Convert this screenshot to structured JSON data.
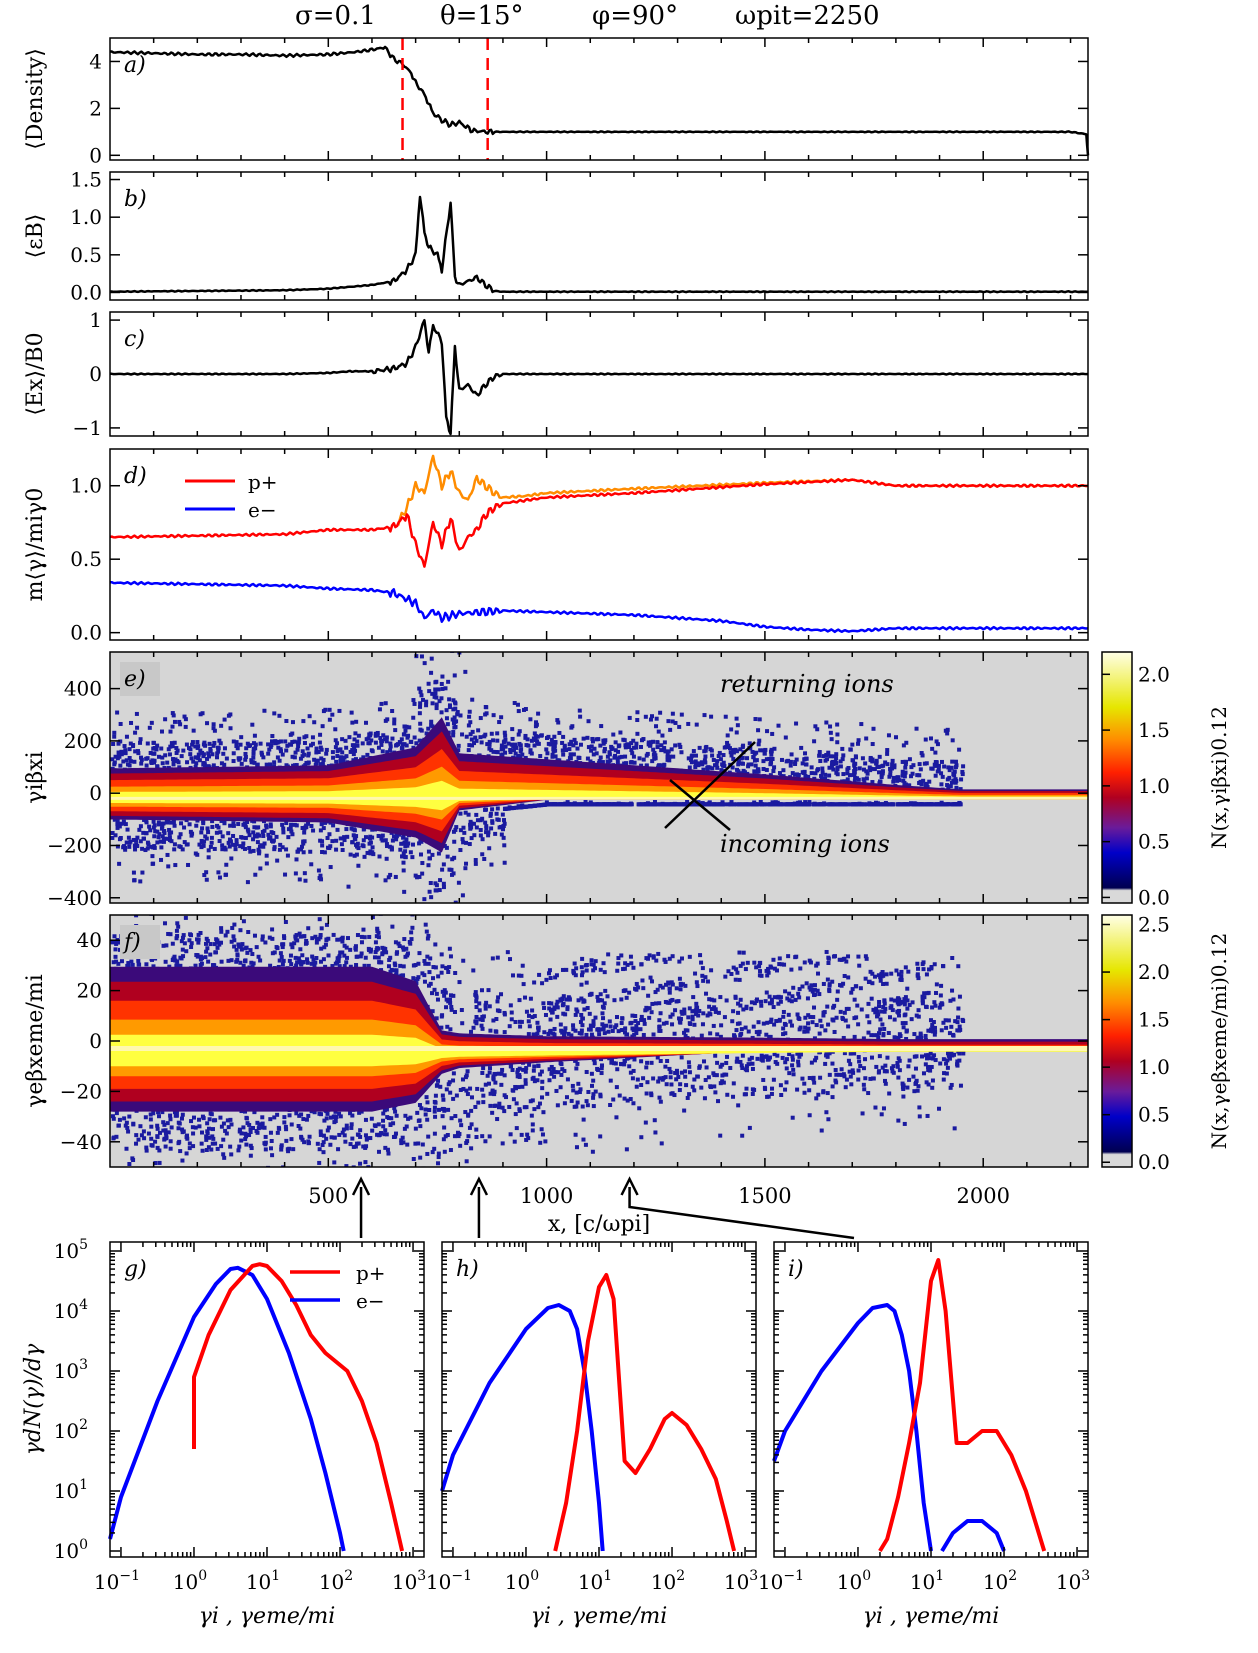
{
  "header": {
    "sigma": "σ=0.1",
    "theta": "θ=15°",
    "phi": "φ=90°",
    "time": "ωpit=2250"
  },
  "chart_data": [
    {
      "id": "a",
      "panel_label": "a)",
      "type": "line",
      "ylabel": "⟨Density⟩",
      "xlim": [
        0,
        2240
      ],
      "ylim": [
        -0.2,
        5
      ],
      "yticks": [
        0,
        2,
        4
      ],
      "markers_x": [
        670,
        865
      ],
      "series": [
        {
          "name": "density",
          "color": "#000000",
          "x": [
            0,
            100,
            200,
            300,
            400,
            500,
            560,
            600,
            630,
            650,
            670,
            690,
            700,
            720,
            730,
            740,
            760,
            780,
            800,
            830,
            865,
            900,
            1000,
            1500,
            2000,
            2200,
            2236,
            2240
          ],
          "y": [
            4.4,
            4.35,
            4.3,
            4.3,
            4.25,
            4.3,
            4.4,
            4.5,
            4.6,
            4.1,
            3.9,
            3.5,
            3.1,
            2.6,
            2.2,
            1.8,
            1.5,
            1.3,
            1.4,
            1.05,
            1.0,
            1.0,
            1.0,
            1.0,
            1.0,
            1.0,
            0.9,
            0.0
          ]
        }
      ]
    },
    {
      "id": "b",
      "panel_label": "b)",
      "type": "line",
      "ylabel": "⟨εB⟩",
      "xlim": [
        0,
        2240
      ],
      "ylim": [
        -0.1,
        1.6
      ],
      "yticks": [
        0.0,
        0.5,
        1.0,
        1.5
      ],
      "series": [
        {
          "name": "epsilon_B",
          "color": "#000000",
          "x": [
            0,
            200,
            400,
            500,
            600,
            650,
            680,
            700,
            710,
            720,
            730,
            750,
            760,
            780,
            790,
            800,
            820,
            840,
            860,
            880,
            900,
            1000,
            1500,
            2240
          ],
          "y": [
            0.01,
            0.02,
            0.03,
            0.05,
            0.1,
            0.15,
            0.3,
            0.5,
            1.3,
            0.8,
            0.6,
            0.5,
            0.3,
            1.2,
            0.2,
            0.1,
            0.15,
            0.2,
            0.1,
            0.02,
            0.01,
            0.01,
            0.01,
            0.01
          ]
        }
      ]
    },
    {
      "id": "c",
      "panel_label": "c)",
      "type": "line",
      "ylabel": "⟨Ex⟩/B0",
      "xlim": [
        0,
        2240
      ],
      "ylim": [
        -1.15,
        1.15
      ],
      "yticks": [
        -1,
        0,
        1
      ],
      "series": [
        {
          "name": "Ex_over_B0",
          "color": "#000000",
          "x": [
            0,
            200,
            400,
            500,
            550,
            600,
            650,
            680,
            700,
            720,
            730,
            740,
            760,
            770,
            780,
            790,
            800,
            820,
            840,
            860,
            880,
            900,
            1000,
            1500,
            2240
          ],
          "y": [
            0,
            0,
            0,
            0.02,
            0.05,
            0.05,
            0.1,
            0.2,
            0.5,
            1.0,
            0.4,
            0.9,
            0.6,
            -0.8,
            -1.1,
            0.5,
            -0.3,
            -0.2,
            -0.4,
            -0.2,
            -0.05,
            0,
            0,
            0,
            0
          ]
        }
      ]
    },
    {
      "id": "d",
      "panel_label": "d)",
      "type": "line",
      "ylabel": "m⟨γ⟩/miγ0",
      "xlim": [
        0,
        2240
      ],
      "ylim": [
        -0.05,
        1.25
      ],
      "yticks": [
        0.0,
        0.5,
        1.0
      ],
      "legend": [
        {
          "label": "p+",
          "color": "#ff0000"
        },
        {
          "label": "e−",
          "color": "#0000ff"
        }
      ],
      "series": [
        {
          "name": "p+ total",
          "color": "#ff8c00",
          "x": [
            660,
            680,
            700,
            720,
            740,
            760,
            780,
            800,
            820,
            840,
            860,
            880,
            900,
            950,
            1000,
            1200,
            1500,
            1700,
            1800,
            2000,
            2240
          ],
          "y": [
            0.75,
            0.85,
            1.0,
            0.95,
            1.2,
            1.0,
            1.1,
            0.95,
            0.9,
            1.05,
            1.0,
            0.95,
            0.92,
            0.93,
            0.95,
            0.98,
            1.02,
            1.04,
            1.0,
            1.0,
            1.0
          ]
        },
        {
          "name": "p+",
          "color": "#ff0000",
          "x": [
            0,
            200,
            400,
            500,
            600,
            650,
            680,
            700,
            720,
            740,
            760,
            780,
            800,
            820,
            840,
            860,
            880,
            900,
            1000,
            1200,
            1500,
            1700,
            1800,
            2000,
            2240
          ],
          "y": [
            0.65,
            0.66,
            0.67,
            0.7,
            0.7,
            0.72,
            0.8,
            0.6,
            0.45,
            0.75,
            0.6,
            0.78,
            0.55,
            0.65,
            0.7,
            0.8,
            0.85,
            0.88,
            0.92,
            0.95,
            1.01,
            1.04,
            1.0,
            1.0,
            1.0
          ]
        },
        {
          "name": "e−",
          "color": "#0000ff",
          "x": [
            0,
            200,
            400,
            500,
            600,
            650,
            700,
            720,
            740,
            760,
            800,
            900,
            1000,
            1200,
            1400,
            1500,
            1600,
            1700,
            1800,
            2000,
            2240
          ],
          "y": [
            0.34,
            0.33,
            0.32,
            0.3,
            0.29,
            0.27,
            0.2,
            0.1,
            0.15,
            0.1,
            0.13,
            0.15,
            0.14,
            0.12,
            0.08,
            0.04,
            0.02,
            0.01,
            0.03,
            0.03,
            0.03
          ]
        }
      ]
    },
    {
      "id": "e",
      "panel_label": "e)",
      "type": "heatmap",
      "ylabel": "γiβxi",
      "xlim": [
        0,
        2240
      ],
      "ylim": [
        -420,
        540
      ],
      "yticks": [
        -400,
        -200,
        0,
        200,
        400
      ],
      "annotations": [
        "returning ions",
        "incoming ions"
      ],
      "colorbar": {
        "label": "N(x,γiβxi)0.12",
        "ticks": [
          0.0,
          0.5,
          1.0,
          1.5,
          2.0
        ]
      },
      "band_upper": {
        "x": [
          0,
          500,
          700,
          760,
          800,
          1000,
          1200,
          1500,
          1800,
          1950
        ],
        "y": [
          80,
          90,
          150,
          250,
          130,
          110,
          90,
          60,
          25,
          10
        ]
      },
      "band_lower": {
        "x": [
          0,
          500,
          700,
          760,
          800,
          1000,
          2240
        ],
        "y": [
          -90,
          -100,
          -150,
          -200,
          -60,
          -25,
          -25
        ]
      }
    },
    {
      "id": "f",
      "panel_label": "f)",
      "type": "heatmap",
      "ylabel": "γeβxeme/mi",
      "xlim": [
        0,
        2240
      ],
      "ylim": [
        -50,
        50
      ],
      "yticks": [
        -40,
        -20,
        0,
        20,
        40
      ],
      "xticks": [
        500,
        1000,
        1500,
        2000
      ],
      "xlabel": "x, [c/ωpi]",
      "colorbar": {
        "label": "N(x,γeβxeme/mi)0.12",
        "ticks": [
          0.0,
          0.5,
          1.0,
          1.5,
          2.0,
          2.5
        ]
      },
      "band_upper": {
        "x": [
          0,
          600,
          700,
          760,
          800,
          1000,
          1500,
          1800,
          2240
        ],
        "y": [
          25,
          25,
          20,
          3,
          2,
          1,
          0.5,
          0,
          0
        ]
      },
      "band_lower": {
        "x": [
          0,
          600,
          700,
          760,
          800,
          1000,
          1500,
          1800,
          2240
        ],
        "y": [
          -25,
          -25,
          -22,
          -12,
          -10,
          -8,
          -4,
          -2,
          -2
        ]
      },
      "arrow_positions_x": [
        575,
        845,
        1190
      ]
    },
    {
      "id": "g",
      "panel_label": "g)",
      "type": "line",
      "log": true,
      "ylabel": "γdN(γ)/dγ",
      "xlabel": "γi , γeme/mi",
      "xlim_log": [
        -1.15,
        3.15
      ],
      "ylim_log": [
        -0.1,
        5.15
      ],
      "xtick_labels": [
        "10−1",
        "100",
        "101",
        "102",
        "103"
      ],
      "ytick_labels": [
        "100",
        "101",
        "102",
        "103",
        "104",
        "105"
      ],
      "legend": [
        {
          "label": "p+",
          "color": "#ff0000"
        },
        {
          "label": "e−",
          "color": "#0000ff"
        }
      ],
      "series": [
        {
          "name": "e−",
          "color": "#0000ff",
          "log10x": [
            -1.15,
            -1.0,
            -0.5,
            0,
            0.3,
            0.5,
            0.6,
            0.8,
            1.0,
            1.3,
            1.6,
            1.8,
            2.0,
            2.05
          ],
          "log10y": [
            0.2,
            0.9,
            2.5,
            3.9,
            4.45,
            4.7,
            4.72,
            4.6,
            4.2,
            3.3,
            2.2,
            1.3,
            0.3,
            0.0
          ]
        },
        {
          "name": "p+",
          "color": "#ff0000",
          "log10x": [
            0.0,
            0.0,
            0.2,
            0.5,
            0.8,
            0.9,
            1.0,
            1.2,
            1.4,
            1.6,
            1.8,
            2.0,
            2.1,
            2.3,
            2.5,
            2.7,
            2.85
          ],
          "log10y": [
            1.7,
            2.9,
            3.6,
            4.35,
            4.75,
            4.78,
            4.75,
            4.5,
            4.1,
            3.6,
            3.3,
            3.1,
            3.0,
            2.5,
            1.8,
            0.8,
            0.0
          ]
        }
      ]
    },
    {
      "id": "h",
      "panel_label": "h)",
      "type": "line",
      "log": true,
      "xlabel": "γi , γeme/mi",
      "xlim_log": [
        -1.15,
        3.15
      ],
      "ylim_log": [
        -0.1,
        5.15
      ],
      "xtick_labels": [
        "10−1",
        "100",
        "101",
        "102",
        "103"
      ],
      "series": [
        {
          "name": "e−",
          "color": "#0000ff",
          "log10x": [
            -1.15,
            -1.0,
            -0.5,
            0.0,
            0.3,
            0.45,
            0.6,
            0.7,
            0.8,
            0.9,
            1.0,
            1.05
          ],
          "log10y": [
            1.0,
            1.6,
            2.8,
            3.7,
            4.05,
            4.1,
            4.0,
            3.7,
            3.0,
            2.0,
            0.8,
            0.0
          ]
        },
        {
          "name": "p+",
          "color": "#ff0000",
          "log10x": [
            0.4,
            0.55,
            0.7,
            0.85,
            1.0,
            1.1,
            1.2,
            1.35,
            1.5,
            1.7,
            1.9,
            2.0,
            2.2,
            2.4,
            2.6,
            2.75,
            2.85
          ],
          "log10y": [
            0.0,
            0.8,
            2.0,
            3.5,
            4.4,
            4.6,
            4.2,
            1.5,
            1.3,
            1.7,
            2.2,
            2.3,
            2.1,
            1.7,
            1.2,
            0.5,
            0.0
          ]
        }
      ]
    },
    {
      "id": "i",
      "panel_label": "i)",
      "type": "line",
      "log": true,
      "xlabel": "γi , γeme/mi",
      "xlim_log": [
        -1.15,
        3.15
      ],
      "ylim_log": [
        -0.1,
        5.15
      ],
      "xtick_labels": [
        "10−1",
        "100",
        "101",
        "102",
        "103"
      ],
      "series": [
        {
          "name": "e−",
          "color": "#0000ff",
          "log10x": [
            -1.15,
            -1.0,
            -0.5,
            0.0,
            0.2,
            0.4,
            0.5,
            0.6,
            0.7,
            0.8,
            0.9,
            1.0
          ],
          "log10y": [
            1.5,
            2.0,
            3.0,
            3.8,
            4.05,
            4.1,
            4.0,
            3.6,
            3.0,
            2.0,
            0.8,
            0.0
          ]
        },
        {
          "name": "e− (high)",
          "color": "#0000ff",
          "log10x": [
            1.15,
            1.3,
            1.5,
            1.7,
            1.9,
            2.0
          ],
          "log10y": [
            0.0,
            0.3,
            0.5,
            0.5,
            0.3,
            0.0
          ]
        },
        {
          "name": "p+",
          "color": "#ff0000",
          "log10x": [
            0.3,
            0.4,
            0.55,
            0.7,
            0.85,
            1.0,
            1.1,
            1.2,
            1.35,
            1.5,
            1.7,
            1.9,
            2.1,
            2.3,
            2.45,
            2.55
          ],
          "log10y": [
            0.0,
            0.2,
            0.9,
            1.8,
            2.8,
            4.5,
            4.85,
            4.0,
            1.8,
            1.8,
            2.0,
            2.0,
            1.6,
            1.0,
            0.4,
            0.0
          ]
        }
      ]
    }
  ]
}
